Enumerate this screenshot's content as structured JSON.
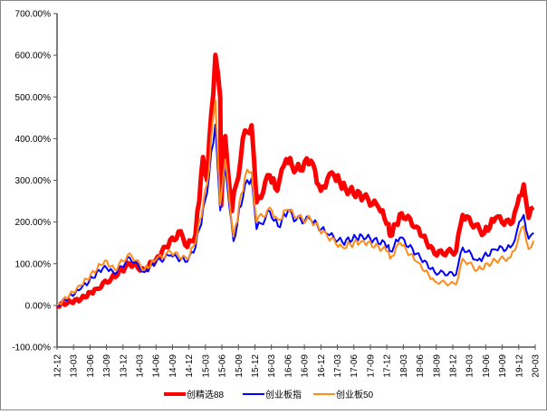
{
  "chart_data": {
    "type": "line",
    "title": "",
    "xlabel": "",
    "ylabel": "",
    "x_unit": "quarter index (0 = 12-12)",
    "ylim": [
      -100,
      700
    ],
    "yticks": [
      -100,
      0,
      100,
      200,
      300,
      400,
      500,
      600,
      700
    ],
    "ytick_labels": [
      "-100.00%",
      "0.00%",
      "100.00%",
      "200.00%",
      "300.00%",
      "400.00%",
      "500.00%",
      "600.00%",
      "700.00%"
    ],
    "xtick_labels": [
      "12-12",
      "13-03",
      "13-06",
      "13-09",
      "13-12",
      "14-03",
      "14-06",
      "14-09",
      "14-12",
      "15-03",
      "15-06",
      "15-09",
      "15-12",
      "16-03",
      "16-06",
      "16-09",
      "16-12",
      "17-03",
      "17-06",
      "17-09",
      "17-12",
      "18-03",
      "18-06",
      "18-09",
      "18-12",
      "19-03",
      "19-06",
      "19-09",
      "19-12",
      "20-03"
    ],
    "grid": false,
    "legend_position": "bottom",
    "series": [
      {
        "name": "创精选88",
        "color": "#ff0000",
        "points": [
          [
            0,
            0
          ],
          [
            1.45,
            15
          ],
          [
            2.4,
            40
          ],
          [
            3.3,
            65
          ],
          [
            4.4,
            100
          ],
          [
            5.3,
            85
          ],
          [
            6.0,
            110
          ],
          [
            6.6,
            140
          ],
          [
            7.5,
            178
          ],
          [
            7.9,
            140
          ],
          [
            8.4,
            170
          ],
          [
            8.85,
            356
          ],
          [
            9.1,
            300
          ],
          [
            9.6,
            601
          ],
          [
            9.9,
            499
          ],
          [
            9.95,
            239
          ],
          [
            10.2,
            406
          ],
          [
            10.6,
            226
          ],
          [
            11.4,
            420
          ],
          [
            11.8,
            432
          ],
          [
            12.1,
            247
          ],
          [
            12.9,
            312
          ],
          [
            13.35,
            275
          ],
          [
            13.9,
            351
          ],
          [
            14.5,
            326
          ],
          [
            15.4,
            347
          ],
          [
            16.0,
            275
          ],
          [
            16.4,
            304
          ],
          [
            16.8,
            312
          ],
          [
            17.5,
            280
          ],
          [
            18.6,
            260
          ],
          [
            19.5,
            235
          ],
          [
            20.1,
            195
          ],
          [
            20.2,
            167
          ],
          [
            20.9,
            221
          ],
          [
            21.8,
            189
          ],
          [
            22.9,
            124
          ],
          [
            24.2,
            130
          ],
          [
            24.6,
            217
          ],
          [
            25.9,
            173
          ],
          [
            26.6,
            210
          ],
          [
            27.5,
            195
          ],
          [
            27.9,
            240
          ],
          [
            28.3,
            290
          ],
          [
            28.6,
            210
          ],
          [
            28.9,
            235
          ]
        ]
      },
      {
        "name": "创业板指",
        "color": "#0000ff",
        "points": [
          [
            0,
            0
          ],
          [
            1.45,
            40
          ],
          [
            2.9,
            95
          ],
          [
            3.5,
            75
          ],
          [
            4.4,
            115
          ],
          [
            5.3,
            80
          ],
          [
            6.0,
            105
          ],
          [
            6.9,
            120
          ],
          [
            7.9,
            105
          ],
          [
            8.4,
            140
          ],
          [
            9.1,
            270
          ],
          [
            9.6,
            434
          ],
          [
            9.9,
            228
          ],
          [
            10.2,
            334
          ],
          [
            10.7,
            154
          ],
          [
            11.4,
            290
          ],
          [
            11.8,
            305
          ],
          [
            12.1,
            183
          ],
          [
            12.9,
            226
          ],
          [
            13.4,
            190
          ],
          [
            14.0,
            226
          ],
          [
            14.5,
            205
          ],
          [
            15.4,
            205
          ],
          [
            16.4,
            171
          ],
          [
            17.3,
            152
          ],
          [
            18.5,
            167
          ],
          [
            20.1,
            145
          ],
          [
            20.2,
            130
          ],
          [
            20.8,
            163
          ],
          [
            21.8,
            124
          ],
          [
            22.9,
            80
          ],
          [
            24.2,
            74
          ],
          [
            24.6,
            139
          ],
          [
            25.5,
            108
          ],
          [
            26.6,
            134
          ],
          [
            27.5,
            139
          ],
          [
            28.3,
            217
          ],
          [
            28.6,
            160
          ],
          [
            28.9,
            174
          ]
        ]
      },
      {
        "name": "创业板50",
        "color": "#ff8c1a",
        "points": [
          [
            0,
            0
          ],
          [
            1.45,
            48
          ],
          [
            2.9,
            108
          ],
          [
            3.5,
            85
          ],
          [
            4.4,
            125
          ],
          [
            5.3,
            85
          ],
          [
            6.0,
            110
          ],
          [
            6.9,
            128
          ],
          [
            7.9,
            110
          ],
          [
            8.4,
            150
          ],
          [
            9.1,
            290
          ],
          [
            9.6,
            492
          ],
          [
            9.9,
            240
          ],
          [
            10.2,
            350
          ],
          [
            10.7,
            165
          ],
          [
            11.4,
            310
          ],
          [
            11.8,
            320
          ],
          [
            12.1,
            200
          ],
          [
            12.9,
            235
          ],
          [
            13.4,
            205
          ],
          [
            14.0,
            230
          ],
          [
            14.5,
            210
          ],
          [
            15.4,
            205
          ],
          [
            16.4,
            165
          ],
          [
            17.3,
            140
          ],
          [
            18.5,
            155
          ],
          [
            20.1,
            130
          ],
          [
            20.2,
            112
          ],
          [
            20.8,
            150
          ],
          [
            21.8,
            105
          ],
          [
            22.9,
            58
          ],
          [
            24.2,
            50
          ],
          [
            24.6,
            112
          ],
          [
            25.5,
            85
          ],
          [
            26.6,
            108
          ],
          [
            27.5,
            115
          ],
          [
            28.3,
            190
          ],
          [
            28.6,
            135
          ],
          [
            28.9,
            155
          ]
        ]
      }
    ]
  }
}
